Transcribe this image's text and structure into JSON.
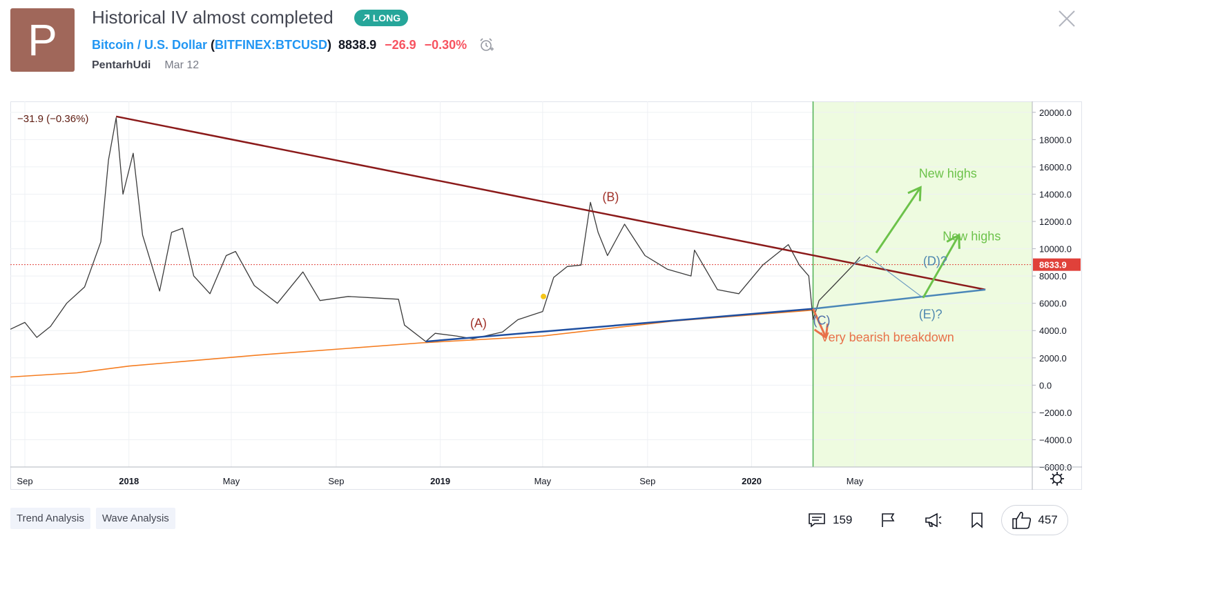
{
  "avatar": {
    "letter": "P",
    "color": "#a0675a"
  },
  "idea": {
    "title": "Historical IV almost completed",
    "badge_label": "LONG",
    "badge_icon": "arrow-up-right-icon",
    "author": "PentarhUdi",
    "date": "Mar 12"
  },
  "symbol": {
    "name": "Bitcoin / U.S. Dollar",
    "code": "BITFINEX:BTCUSD",
    "price": "8838.9",
    "change": "−26.9",
    "change_pct": "−0.30%",
    "alert_icon": "alarm-clock-icon"
  },
  "colors": {
    "accent_blue": "#2196f3",
    "long_green": "#26a69a",
    "negative_red": "#f7525f",
    "avatar": "#a0675a",
    "projection_zone": "#eefbe0",
    "resistance_line": "#8b1a1a",
    "support_line": "#1f4fa0",
    "moving_average": "#f57c1f",
    "projection_green": "#6cc24a",
    "bearish_orange": "#e8704a"
  },
  "chart_data": {
    "type": "line",
    "series_name": "BTCUSD",
    "legend_value": "−31.9 (−0.36%)",
    "last_price_label": "8833.9",
    "ylim": [
      -6000,
      20800
    ],
    "y_ticks": [
      {
        "v": 20000,
        "label": "20000.0"
      },
      {
        "v": 18000,
        "label": "18000.0"
      },
      {
        "v": 16000,
        "label": "16000.0"
      },
      {
        "v": 14000,
        "label": "14000.0"
      },
      {
        "v": 12000,
        "label": "12000.0"
      },
      {
        "v": 10000,
        "label": "10000.0"
      },
      {
        "v": 8000,
        "label": "8000.0"
      },
      {
        "v": 6000,
        "label": "6000.0"
      },
      {
        "v": 4000,
        "label": "4000.0"
      },
      {
        "v": 2000,
        "label": "2000.0"
      },
      {
        "v": 0,
        "label": "0.0"
      },
      {
        "v": -2000,
        "label": "−2000.0"
      },
      {
        "v": -4000,
        "label": "−4000.0"
      },
      {
        "v": -6000,
        "label": "−6000.0"
      }
    ],
    "x_range": [
      "2017-08-15",
      "2020-11-25"
    ],
    "x_ticks": [
      {
        "date": "2017-09-01",
        "label": "Sep",
        "bold": false
      },
      {
        "date": "2018-01-01",
        "label": "2018",
        "bold": true
      },
      {
        "date": "2018-05-01",
        "label": "May",
        "bold": false
      },
      {
        "date": "2018-09-01",
        "label": "Sep",
        "bold": false
      },
      {
        "date": "2019-01-01",
        "label": "2019",
        "bold": true
      },
      {
        "date": "2019-05-01",
        "label": "May",
        "bold": false
      },
      {
        "date": "2019-09-01",
        "label": "Sep",
        "bold": false
      },
      {
        "date": "2020-01-01",
        "label": "2020",
        "bold": true
      },
      {
        "date": "2020-05-01",
        "label": "May",
        "bold": false
      }
    ],
    "price": [
      [
        "2017-08-15",
        4100
      ],
      [
        "2017-09-01",
        4600
      ],
      [
        "2017-09-15",
        3500
      ],
      [
        "2017-10-01",
        4300
      ],
      [
        "2017-10-20",
        6000
      ],
      [
        "2017-11-10",
        7200
      ],
      [
        "2017-11-29",
        10500
      ],
      [
        "2017-12-08",
        16500
      ],
      [
        "2017-12-17",
        19600
      ],
      [
        "2017-12-25",
        14000
      ],
      [
        "2018-01-06",
        17000
      ],
      [
        "2018-01-17",
        11000
      ],
      [
        "2018-02-06",
        6900
      ],
      [
        "2018-02-20",
        11200
      ],
      [
        "2018-03-05",
        11500
      ],
      [
        "2018-03-18",
        8000
      ],
      [
        "2018-04-06",
        6700
      ],
      [
        "2018-04-25",
        9500
      ],
      [
        "2018-05-06",
        9800
      ],
      [
        "2018-05-28",
        7300
      ],
      [
        "2018-06-24",
        6000
      ],
      [
        "2018-07-24",
        8300
      ],
      [
        "2018-08-13",
        6200
      ],
      [
        "2018-09-15",
        6500
      ],
      [
        "2018-10-15",
        6400
      ],
      [
        "2018-11-13",
        6300
      ],
      [
        "2018-11-20",
        4400
      ],
      [
        "2018-12-15",
        3200
      ],
      [
        "2018-12-26",
        3800
      ],
      [
        "2019-01-20",
        3600
      ],
      [
        "2019-02-08",
        3400
      ],
      [
        "2019-03-15",
        3900
      ],
      [
        "2019-04-02",
        4800
      ],
      [
        "2019-05-01",
        5400
      ],
      [
        "2019-05-14",
        7900
      ],
      [
        "2019-05-30",
        8700
      ],
      [
        "2019-06-15",
        8800
      ],
      [
        "2019-06-26",
        13400
      ],
      [
        "2019-07-05",
        11200
      ],
      [
        "2019-07-16",
        9500
      ],
      [
        "2019-08-05",
        11800
      ],
      [
        "2019-08-29",
        9500
      ],
      [
        "2019-09-24",
        8500
      ],
      [
        "2019-10-22",
        8000
      ],
      [
        "2019-10-26",
        9900
      ],
      [
        "2019-11-22",
        7000
      ],
      [
        "2019-12-17",
        6700
      ],
      [
        "2020-01-14",
        8800
      ],
      [
        "2020-02-13",
        10300
      ],
      [
        "2020-02-26",
        8800
      ],
      [
        "2020-03-08",
        8000
      ],
      [
        "2020-03-13",
        4800
      ],
      [
        "2020-03-20",
        6200
      ],
      [
        "2020-04-06",
        7300
      ],
      [
        "2020-04-29",
        8800
      ],
      [
        "2020-05-07",
        9400
      ]
    ],
    "moving_average": [
      [
        "2017-08-15",
        600
      ],
      [
        "2017-11-01",
        900
      ],
      [
        "2018-01-01",
        1400
      ],
      [
        "2018-06-01",
        2200
      ],
      [
        "2018-12-10",
        3100
      ],
      [
        "2019-05-01",
        3600
      ],
      [
        "2019-10-01",
        4700
      ],
      [
        "2020-03-13",
        5500
      ]
    ],
    "resistance_line": [
      [
        "2017-12-17",
        19700
      ],
      [
        "2020-10-01",
        7000
      ]
    ],
    "support_line": [
      [
        "2018-12-15",
        3200
      ],
      [
        "2020-03-13",
        5600
      ]
    ],
    "support_projection": [
      [
        "2020-03-13",
        5600
      ],
      [
        "2020-10-01",
        7000
      ]
    ],
    "projection_zone_start": "2020-03-13",
    "annotations": [
      {
        "text": "(A)",
        "date": "2019-02-05",
        "v": 4250,
        "color": "#a0322a"
      },
      {
        "text": "(B)",
        "date": "2019-07-10",
        "v": 13500,
        "color": "#a0322a"
      },
      {
        "text": "(C)",
        "date": "2020-03-13",
        "v": 4450,
        "color": "#4f6fa8"
      },
      {
        "text": "(D)?",
        "date": "2020-07-20",
        "v": 8800,
        "color": "#4f88b0"
      },
      {
        "text": "(E)?",
        "date": "2020-07-15",
        "v": 4900,
        "color": "#4f88b0"
      },
      {
        "text": "New highs",
        "date": "2020-07-15",
        "v": 15200,
        "color": "#6cc24a"
      },
      {
        "text": "New highs",
        "date": "2020-08-12",
        "v": 10600,
        "color": "#6cc24a"
      },
      {
        "text": "Very bearish breakdown",
        "date": "2020-03-22",
        "v": 3200,
        "color": "#e8704a"
      }
    ],
    "wave_path": [
      [
        "2020-04-29",
        8800
      ],
      [
        "2020-05-15",
        9500
      ],
      [
        "2020-07-20",
        6400
      ]
    ],
    "projection_arrows": [
      {
        "from": [
          "2020-05-26",
          9700
        ],
        "to": [
          "2020-07-17",
          14500
        ],
        "color": "#6cc24a"
      },
      {
        "from": [
          "2020-07-20",
          6400
        ],
        "to": [
          "2020-08-31",
          11000
        ],
        "color": "#6cc24a"
      },
      {
        "from": [
          "2020-03-13",
          5600
        ],
        "to": [
          "2020-03-28",
          3500
        ],
        "color": "#e8704a"
      }
    ],
    "ma_marker": {
      "date": "2019-05-02",
      "v": 6500
    }
  },
  "tags": [
    "Trend Analysis",
    "Wave Analysis"
  ],
  "actions": {
    "comments_count": "159",
    "likes_count": "457",
    "comment_icon": "comment-icon",
    "flag_icon": "flag-icon",
    "share_icon": "megaphone-icon",
    "bookmark_icon": "bookmark-icon",
    "like_icon": "thumbs-up-icon"
  },
  "chart_settings_icon": "gear-icon",
  "close_icon": "close-icon"
}
